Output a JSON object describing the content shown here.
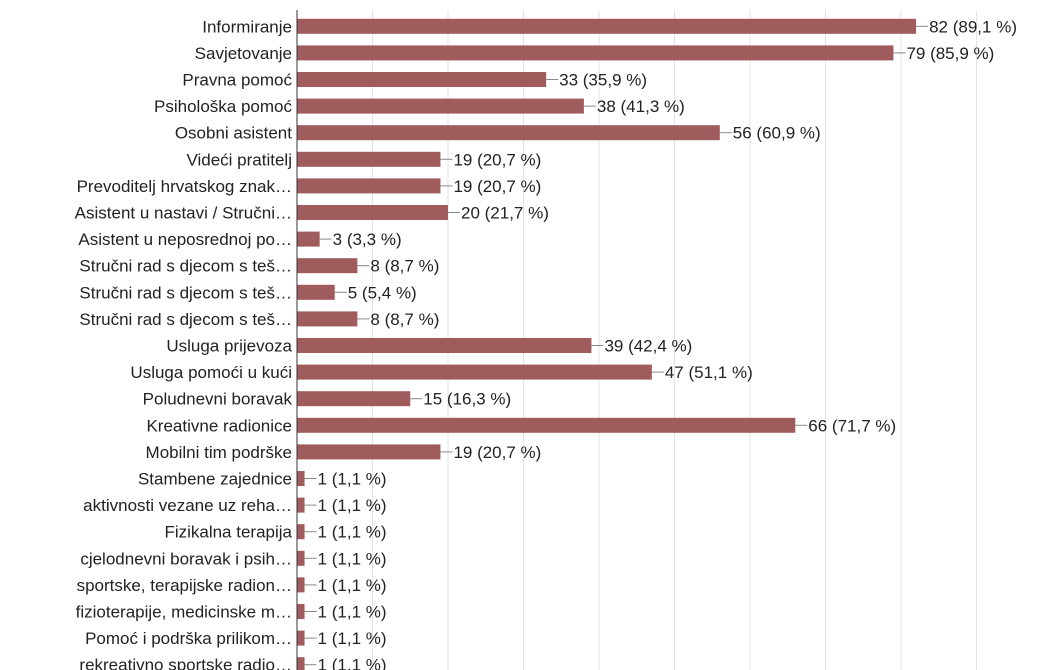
{
  "chart_data": {
    "type": "bar",
    "orientation": "horizontal",
    "categories": [
      "Informiranje",
      "Savjetovanje",
      "Pravna pomoć",
      "Psihološka pomoć",
      "Osobni asistent",
      "Videći pratitelj",
      "Prevoditelj hrvatskog znak…",
      "Asistent u nastavi / Stručni…",
      "Asistent u neposrednoj po…",
      "Stručni rad s djecom s teš…",
      "Stručni rad s djecom s teš…",
      "Stručni rad s djecom s teš…",
      "Usluga prijevoza",
      "Usluga pomoći u kući",
      "Poludnevni boravak",
      "Kreativne radionice",
      "Mobilni tim podrške",
      "Stambene zajednice",
      "aktivnosti vezane uz reha…",
      "Fizikalna terapija",
      "cjelodnevni boravak i psih…",
      "sportske, terapijske radion…",
      "fizioterapije, medicinske m…",
      "Pomoć i podrška prilikom…",
      "rekreativno sportske radio…"
    ],
    "values": [
      82,
      79,
      33,
      38,
      56,
      19,
      19,
      20,
      3,
      8,
      5,
      8,
      39,
      47,
      15,
      66,
      19,
      1,
      1,
      1,
      1,
      1,
      1,
      1,
      1
    ],
    "percents": [
      "89,1 %",
      "85,9 %",
      "35,9 %",
      "41,3 %",
      "60,9 %",
      "20,7 %",
      "20,7 %",
      "21,7 %",
      "3,3 %",
      "8,7 %",
      "5,4 %",
      "8,7 %",
      "42,4 %",
      "51,1 %",
      "16,3 %",
      "71,7 %",
      "20,7 %",
      "1,1 %",
      "1,1 %",
      "1,1 %",
      "1,1 %",
      "1,1 %",
      "1,1 %",
      "1,1 %",
      "1,1 %"
    ],
    "data_labels": [
      "82 (89,1 %)",
      "79 (85,9 %)",
      "33 (35,9 %)",
      "38 (41,3 %)",
      "56 (60,9 %)",
      "19 (20,7 %)",
      "19 (20,7 %)",
      "20 (21,7 %)",
      "3 (3,3 %)",
      "8 (8,7 %)",
      "5 (5,4 %)",
      "8 (8,7 %)",
      "39 (42,4 %)",
      "47 (51,1 %)",
      "15 (16,3 %)",
      "66 (71,7 %)",
      "19 (20,7 %)",
      "1 (1,1 %)",
      "1 (1,1 %)",
      "1 (1,1 %)",
      "1 (1,1 %)",
      "1 (1,1 %)",
      "1 (1,1 %)",
      "1 (1,1 %)",
      "1 (1,1 %)"
    ],
    "xlim": [
      0,
      92
    ],
    "grid": true,
    "colors": {
      "bar": "#a05c5c",
      "grid": "#e3e3e3",
      "axis": "#333333",
      "text": "#222222",
      "leader": "#888888"
    }
  }
}
